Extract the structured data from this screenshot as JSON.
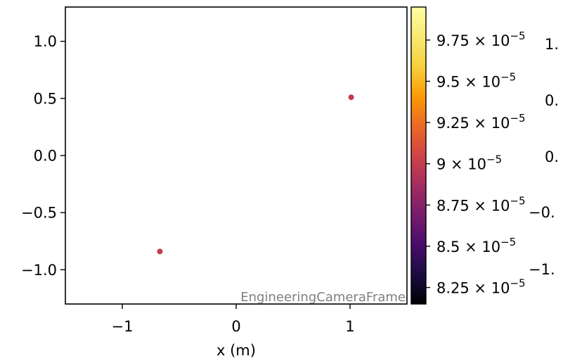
{
  "chart_data": {
    "type": "scatter",
    "title": "",
    "xlabel": "x  (m)",
    "ylabel": "",
    "xlim": [
      -1.5,
      1.5
    ],
    "ylim": [
      -1.3,
      1.3
    ],
    "x_ticks": [
      {
        "value": -1,
        "label": "−1"
      },
      {
        "value": 0,
        "label": "0"
      },
      {
        "value": 1,
        "label": "1"
      }
    ],
    "y_ticks": [
      {
        "value": 1.0,
        "label": "1.0"
      },
      {
        "value": 0.5,
        "label": "0.5"
      },
      {
        "value": 0.0,
        "label": "0.0"
      },
      {
        "value": -0.5,
        "label": "−0.5"
      },
      {
        "value": -1.0,
        "label": "−1.0"
      }
    ],
    "points": [
      {
        "x": 1.01,
        "y": 0.51,
        "value": 9.05e-05
      },
      {
        "x": -0.67,
        "y": -0.84,
        "value": 9.05e-05
      }
    ],
    "point_color": "#c13c50",
    "frame_annotation": "EngineeringCameraFrame",
    "colorbar": {
      "colormap": "inferno",
      "range": [
        8.15e-05,
        9.95e-05
      ],
      "ticks": [
        {
          "value": 9.75e-05,
          "mantissa": "9.75",
          "exponent": "−5"
        },
        {
          "value": 9.5e-05,
          "mantissa": "9.5",
          "exponent": "−5"
        },
        {
          "value": 9.25e-05,
          "mantissa": "9.25",
          "exponent": "−5"
        },
        {
          "value": 9e-05,
          "mantissa": "9",
          "exponent": "−5"
        },
        {
          "value": 8.75e-05,
          "mantissa": "8.75",
          "exponent": "−5"
        },
        {
          "value": 8.5e-05,
          "mantissa": "8.5",
          "exponent": "−5"
        },
        {
          "value": 8.25e-05,
          "mantissa": "8.25",
          "exponent": "−5"
        }
      ]
    },
    "clipped_neighbor_labels": [
      "1.",
      "0.",
      "0.",
      "−0.",
      "−1."
    ]
  }
}
